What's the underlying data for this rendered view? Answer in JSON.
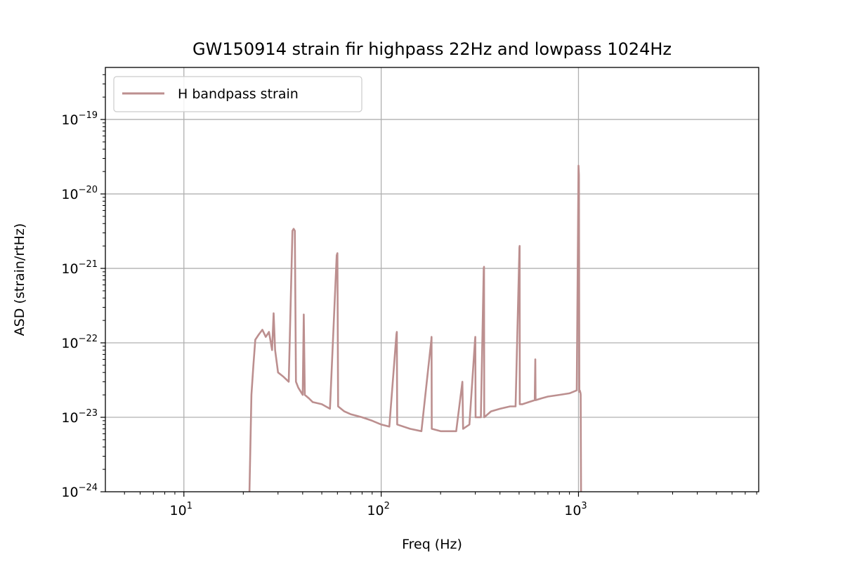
{
  "chart_data": {
    "type": "line",
    "title": "GW150914 strain fir highpass 22Hz and lowpass 1024Hz",
    "xlabel": "Freq (Hz)",
    "ylabel": "ASD (strain/rtHz)",
    "xscale": "log",
    "yscale": "log",
    "xlim": [
      4,
      8192
    ],
    "ylim": [
      1e-24,
      5e-19
    ],
    "grid": true,
    "legend_position": "top-left",
    "x_ticks": [
      {
        "value": 10,
        "base": "10",
        "exp": "1"
      },
      {
        "value": 100,
        "base": "10",
        "exp": "2"
      },
      {
        "value": 1000,
        "base": "10",
        "exp": "3"
      }
    ],
    "y_ticks": [
      {
        "value": 1e-24,
        "base": "10",
        "exp": "−24"
      },
      {
        "value": 1e-23,
        "base": "10",
        "exp": "−23"
      },
      {
        "value": 1e-22,
        "base": "10",
        "exp": "−22"
      },
      {
        "value": 1e-21,
        "base": "10",
        "exp": "−21"
      },
      {
        "value": 1e-20,
        "base": "10",
        "exp": "−20"
      },
      {
        "value": 1e-19,
        "base": "10",
        "exp": "−19"
      }
    ],
    "series": [
      {
        "name": "H bandpass strain",
        "color": "#bc8f8f",
        "x": [
          21.5,
          22,
          22.5,
          23,
          24,
          25,
          26,
          27,
          28,
          28.5,
          29,
          30,
          32,
          34,
          35.5,
          36,
          36.5,
          37,
          38,
          40,
          40.5,
          41,
          43,
          45,
          50,
          55,
          59.5,
          60,
          60.5,
          65,
          70,
          80,
          90,
          100,
          110,
          119.5,
          120,
          120.5,
          140,
          160,
          179.5,
          180,
          180.5,
          200,
          240,
          258,
          260,
          280,
          299,
          300,
          301,
          320,
          331,
          332,
          333,
          360,
          400,
          450,
          480,
          502,
          503,
          504,
          520,
          560,
          600,
          604,
          606,
          650,
          700,
          800,
          900,
          980,
          1000,
          1005,
          1010,
          1015,
          1020,
          1024,
          1026,
          1030
        ],
        "y": [
          1e-24,
          2e-23,
          5e-23,
          1.1e-22,
          1.3e-22,
          1.5e-22,
          1.2e-22,
          1.4e-22,
          8e-23,
          2.5e-22,
          8e-23,
          4e-23,
          3.5e-23,
          3e-23,
          3.2e-21,
          3.4e-21,
          3.2e-21,
          3e-23,
          2.5e-23,
          2e-23,
          2.4e-22,
          2e-23,
          1.8e-23,
          1.6e-23,
          1.5e-23,
          1.3e-23,
          1.5e-21,
          1.6e-21,
          1.4e-23,
          1.2e-23,
          1.1e-23,
          1e-23,
          9e-24,
          8e-24,
          7.5e-24,
          1.3e-22,
          1.4e-22,
          8e-24,
          7e-24,
          6.5e-24,
          1.1e-22,
          1.2e-22,
          7e-24,
          6.5e-24,
          6.5e-24,
          3e-23,
          7e-24,
          8e-24,
          1.1e-22,
          1.2e-22,
          1e-23,
          1e-23,
          1e-21,
          1.05e-21,
          1e-23,
          1.2e-23,
          1.3e-23,
          1.4e-23,
          1.4e-23,
          1.9e-21,
          2e-21,
          1.5e-23,
          1.5e-23,
          1.6e-23,
          1.7e-23,
          6e-23,
          1.7e-23,
          1.8e-23,
          1.9e-23,
          2e-23,
          2.1e-23,
          2.3e-23,
          2.4e-20,
          1.8e-20,
          2.2e-23,
          2.3e-23,
          2.2e-23,
          2.1e-23,
          2e-23,
          1e-24
        ]
      }
    ]
  }
}
